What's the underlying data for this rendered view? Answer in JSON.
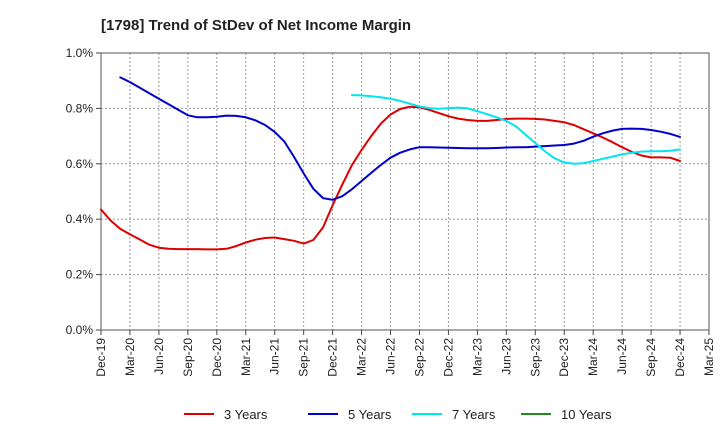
{
  "chart_data": {
    "type": "line",
    "title": "[1798]  Trend of StDev of Net Income Margin",
    "xlabel": "",
    "ylabel": "",
    "x_ticks": [
      "Dec-19",
      "Mar-20",
      "Jun-20",
      "Sep-20",
      "Dec-20",
      "Mar-21",
      "Jun-21",
      "Sep-21",
      "Dec-21",
      "Mar-22",
      "Jun-22",
      "Sep-22",
      "Dec-22",
      "Mar-23",
      "Jun-23",
      "Sep-23",
      "Dec-23",
      "Mar-24",
      "Jun-24",
      "Sep-24",
      "Dec-24",
      "Mar-25"
    ],
    "y_ticks": [
      "0.0%",
      "0.2%",
      "0.4%",
      "0.6%",
      "0.8%",
      "1.0%"
    ],
    "ylim": [
      0,
      1.0
    ],
    "y_unit": "%",
    "grid": true,
    "legend_position": "bottom",
    "series": [
      {
        "name": "3 Years",
        "color": "#dd0000",
        "points": [
          [
            "Dec-19",
            0.435
          ],
          [
            "Jan-20",
            0.395
          ],
          [
            "Feb-20",
            0.365
          ],
          [
            "Mar-20",
            0.345
          ],
          [
            "Apr-20",
            0.327
          ],
          [
            "May-20",
            0.308
          ],
          [
            "Jun-20",
            0.297
          ],
          [
            "Jul-20",
            0.293
          ],
          [
            "Aug-20",
            0.292
          ],
          [
            "Sep-20",
            0.292
          ],
          [
            "Oct-20",
            0.292
          ],
          [
            "Nov-20",
            0.291
          ],
          [
            "Dec-20",
            0.291
          ],
          [
            "Jan-21",
            0.293
          ],
          [
            "Feb-21",
            0.303
          ],
          [
            "Mar-21",
            0.316
          ],
          [
            "Apr-21",
            0.326
          ],
          [
            "May-21",
            0.332
          ],
          [
            "Jun-21",
            0.334
          ],
          [
            "Jul-21",
            0.328
          ],
          [
            "Aug-21",
            0.322
          ],
          [
            "Sep-21",
            0.312
          ],
          [
            "Oct-21",
            0.325
          ],
          [
            "Nov-21",
            0.37
          ],
          [
            "Dec-21",
            0.45
          ],
          [
            "Jan-22",
            0.525
          ],
          [
            "Feb-22",
            0.595
          ],
          [
            "Mar-22",
            0.65
          ],
          [
            "Apr-22",
            0.7
          ],
          [
            "May-22",
            0.745
          ],
          [
            "Jun-22",
            0.778
          ],
          [
            "Jul-22",
            0.798
          ],
          [
            "Aug-22",
            0.806
          ],
          [
            "Sep-22",
            0.804
          ],
          [
            "Oct-22",
            0.795
          ],
          [
            "Nov-22",
            0.783
          ],
          [
            "Dec-22",
            0.772
          ],
          [
            "Jan-23",
            0.763
          ],
          [
            "Feb-23",
            0.758
          ],
          [
            "Mar-23",
            0.755
          ],
          [
            "Apr-23",
            0.755
          ],
          [
            "May-23",
            0.758
          ],
          [
            "Jun-23",
            0.762
          ],
          [
            "Jul-23",
            0.763
          ],
          [
            "Aug-23",
            0.763
          ],
          [
            "Sep-23",
            0.762
          ],
          [
            "Oct-23",
            0.76
          ],
          [
            "Nov-23",
            0.755
          ],
          [
            "Dec-23",
            0.75
          ],
          [
            "Jan-24",
            0.74
          ],
          [
            "Feb-24",
            0.725
          ],
          [
            "Mar-24",
            0.71
          ],
          [
            "Apr-24",
            0.695
          ],
          [
            "May-24",
            0.678
          ],
          [
            "Jun-24",
            0.66
          ],
          [
            "Jul-24",
            0.643
          ],
          [
            "Aug-24",
            0.63
          ],
          [
            "Sep-24",
            0.623
          ],
          [
            "Oct-24",
            0.623
          ],
          [
            "Nov-24",
            0.622
          ],
          [
            "Dec-24",
            0.61
          ]
        ]
      },
      {
        "name": "5 Years",
        "color": "#0000cc",
        "points": [
          [
            "Feb-20",
            0.912
          ],
          [
            "Mar-20",
            0.895
          ],
          [
            "Apr-20",
            0.875
          ],
          [
            "May-20",
            0.855
          ],
          [
            "Jun-20",
            0.835
          ],
          [
            "Jul-20",
            0.815
          ],
          [
            "Aug-20",
            0.795
          ],
          [
            "Sep-20",
            0.775
          ],
          [
            "Oct-20",
            0.768
          ],
          [
            "Nov-20",
            0.768
          ],
          [
            "Dec-20",
            0.77
          ],
          [
            "Jan-21",
            0.774
          ],
          [
            "Feb-21",
            0.773
          ],
          [
            "Mar-21",
            0.768
          ],
          [
            "Apr-21",
            0.757
          ],
          [
            "May-21",
            0.74
          ],
          [
            "Jun-21",
            0.715
          ],
          [
            "Jul-21",
            0.68
          ],
          [
            "Aug-21",
            0.625
          ],
          [
            "Sep-21",
            0.565
          ],
          [
            "Oct-21",
            0.51
          ],
          [
            "Nov-21",
            0.476
          ],
          [
            "Dec-21",
            0.47
          ],
          [
            "Jan-22",
            0.483
          ],
          [
            "Feb-22",
            0.508
          ],
          [
            "Mar-22",
            0.538
          ],
          [
            "Apr-22",
            0.567
          ],
          [
            "May-22",
            0.596
          ],
          [
            "Jun-22",
            0.622
          ],
          [
            "Jul-22",
            0.64
          ],
          [
            "Aug-22",
            0.652
          ],
          [
            "Sep-22",
            0.66
          ],
          [
            "Oct-22",
            0.66
          ],
          [
            "Nov-22",
            0.659
          ],
          [
            "Dec-22",
            0.658
          ],
          [
            "Jan-23",
            0.657
          ],
          [
            "Feb-23",
            0.656
          ],
          [
            "Mar-23",
            0.656
          ],
          [
            "Apr-23",
            0.656
          ],
          [
            "May-23",
            0.657
          ],
          [
            "Jun-23",
            0.659
          ],
          [
            "Jul-23",
            0.66
          ],
          [
            "Aug-23",
            0.66
          ],
          [
            "Sep-23",
            0.662
          ],
          [
            "Oct-23",
            0.664
          ],
          [
            "Nov-23",
            0.666
          ],
          [
            "Dec-23",
            0.668
          ],
          [
            "Jan-24",
            0.673
          ],
          [
            "Feb-24",
            0.683
          ],
          [
            "Mar-24",
            0.698
          ],
          [
            "Apr-24",
            0.71
          ],
          [
            "May-24",
            0.72
          ],
          [
            "Jun-24",
            0.726
          ],
          [
            "Jul-24",
            0.727
          ],
          [
            "Aug-24",
            0.726
          ],
          [
            "Sep-24",
            0.722
          ],
          [
            "Oct-24",
            0.716
          ],
          [
            "Nov-24",
            0.708
          ],
          [
            "Dec-24",
            0.697
          ]
        ]
      },
      {
        "name": "7 Years",
        "color": "#00e5ee",
        "points": [
          [
            "Feb-22",
            0.848
          ],
          [
            "Mar-22",
            0.847
          ],
          [
            "Apr-22",
            0.844
          ],
          [
            "May-22",
            0.84
          ],
          [
            "Jun-22",
            0.835
          ],
          [
            "Jul-22",
            0.827
          ],
          [
            "Aug-22",
            0.817
          ],
          [
            "Sep-22",
            0.807
          ],
          [
            "Oct-22",
            0.801
          ],
          [
            "Nov-22",
            0.799
          ],
          [
            "Dec-22",
            0.801
          ],
          [
            "Jan-23",
            0.803
          ],
          [
            "Feb-23",
            0.8
          ],
          [
            "Mar-23",
            0.79
          ],
          [
            "Apr-23",
            0.779
          ],
          [
            "May-23",
            0.768
          ],
          [
            "Jun-23",
            0.755
          ],
          [
            "Jul-23",
            0.735
          ],
          [
            "Aug-23",
            0.705
          ],
          [
            "Sep-23",
            0.675
          ],
          [
            "Oct-23",
            0.645
          ],
          [
            "Nov-23",
            0.62
          ],
          [
            "Dec-23",
            0.605
          ],
          [
            "Jan-24",
            0.6
          ],
          [
            "Feb-24",
            0.602
          ],
          [
            "Mar-24",
            0.61
          ],
          [
            "Apr-24",
            0.618
          ],
          [
            "May-24",
            0.626
          ],
          [
            "Jun-24",
            0.634
          ],
          [
            "Jul-24",
            0.64
          ],
          [
            "Aug-24",
            0.644
          ],
          [
            "Sep-24",
            0.645
          ],
          [
            "Oct-24",
            0.645
          ],
          [
            "Nov-24",
            0.647
          ],
          [
            "Dec-24",
            0.652
          ]
        ]
      },
      {
        "name": "10 Years",
        "color": "#228b22",
        "points": []
      }
    ]
  }
}
